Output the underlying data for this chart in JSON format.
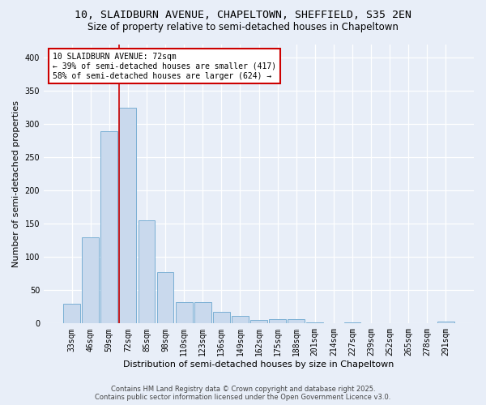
{
  "title_line1": "10, SLAIDBURN AVENUE, CHAPELTOWN, SHEFFIELD, S35 2EN",
  "title_line2": "Size of property relative to semi-detached houses in Chapeltown",
  "xlabel": "Distribution of semi-detached houses by size in Chapeltown",
  "ylabel": "Number of semi-detached properties",
  "categories": [
    "33sqm",
    "46sqm",
    "59sqm",
    "72sqm",
    "85sqm",
    "98sqm",
    "110sqm",
    "123sqm",
    "136sqm",
    "149sqm",
    "162sqm",
    "175sqm",
    "188sqm",
    "201sqm",
    "214sqm",
    "227sqm",
    "239sqm",
    "252sqm",
    "265sqm",
    "278sqm",
    "291sqm"
  ],
  "values": [
    30,
    130,
    290,
    325,
    155,
    77,
    32,
    32,
    18,
    11,
    5,
    6,
    6,
    2,
    0,
    2,
    0,
    0,
    0,
    0,
    3
  ],
  "bar_color": "#c9d9ed",
  "bar_edge_color": "#7aafd4",
  "highlight_bar_index": 3,
  "highlight_line_color": "#cc0000",
  "annotation_text": "10 SLAIDBURN AVENUE: 72sqm\n← 39% of semi-detached houses are smaller (417)\n58% of semi-detached houses are larger (624) →",
  "annotation_box_color": "#ffffff",
  "annotation_box_edge_color": "#cc0000",
  "ylim": [
    0,
    420
  ],
  "yticks": [
    0,
    50,
    100,
    150,
    200,
    250,
    300,
    350,
    400
  ],
  "footer_line1": "Contains HM Land Registry data © Crown copyright and database right 2025.",
  "footer_line2": "Contains public sector information licensed under the Open Government Licence v3.0.",
  "bg_color": "#e8eef8",
  "plot_bg_color": "#e8eef8",
  "grid_color": "#ffffff",
  "title_fontsize": 9.5,
  "subtitle_fontsize": 8.5,
  "axis_label_fontsize": 8,
  "tick_fontsize": 7,
  "annotation_fontsize": 7,
  "footer_fontsize": 6
}
